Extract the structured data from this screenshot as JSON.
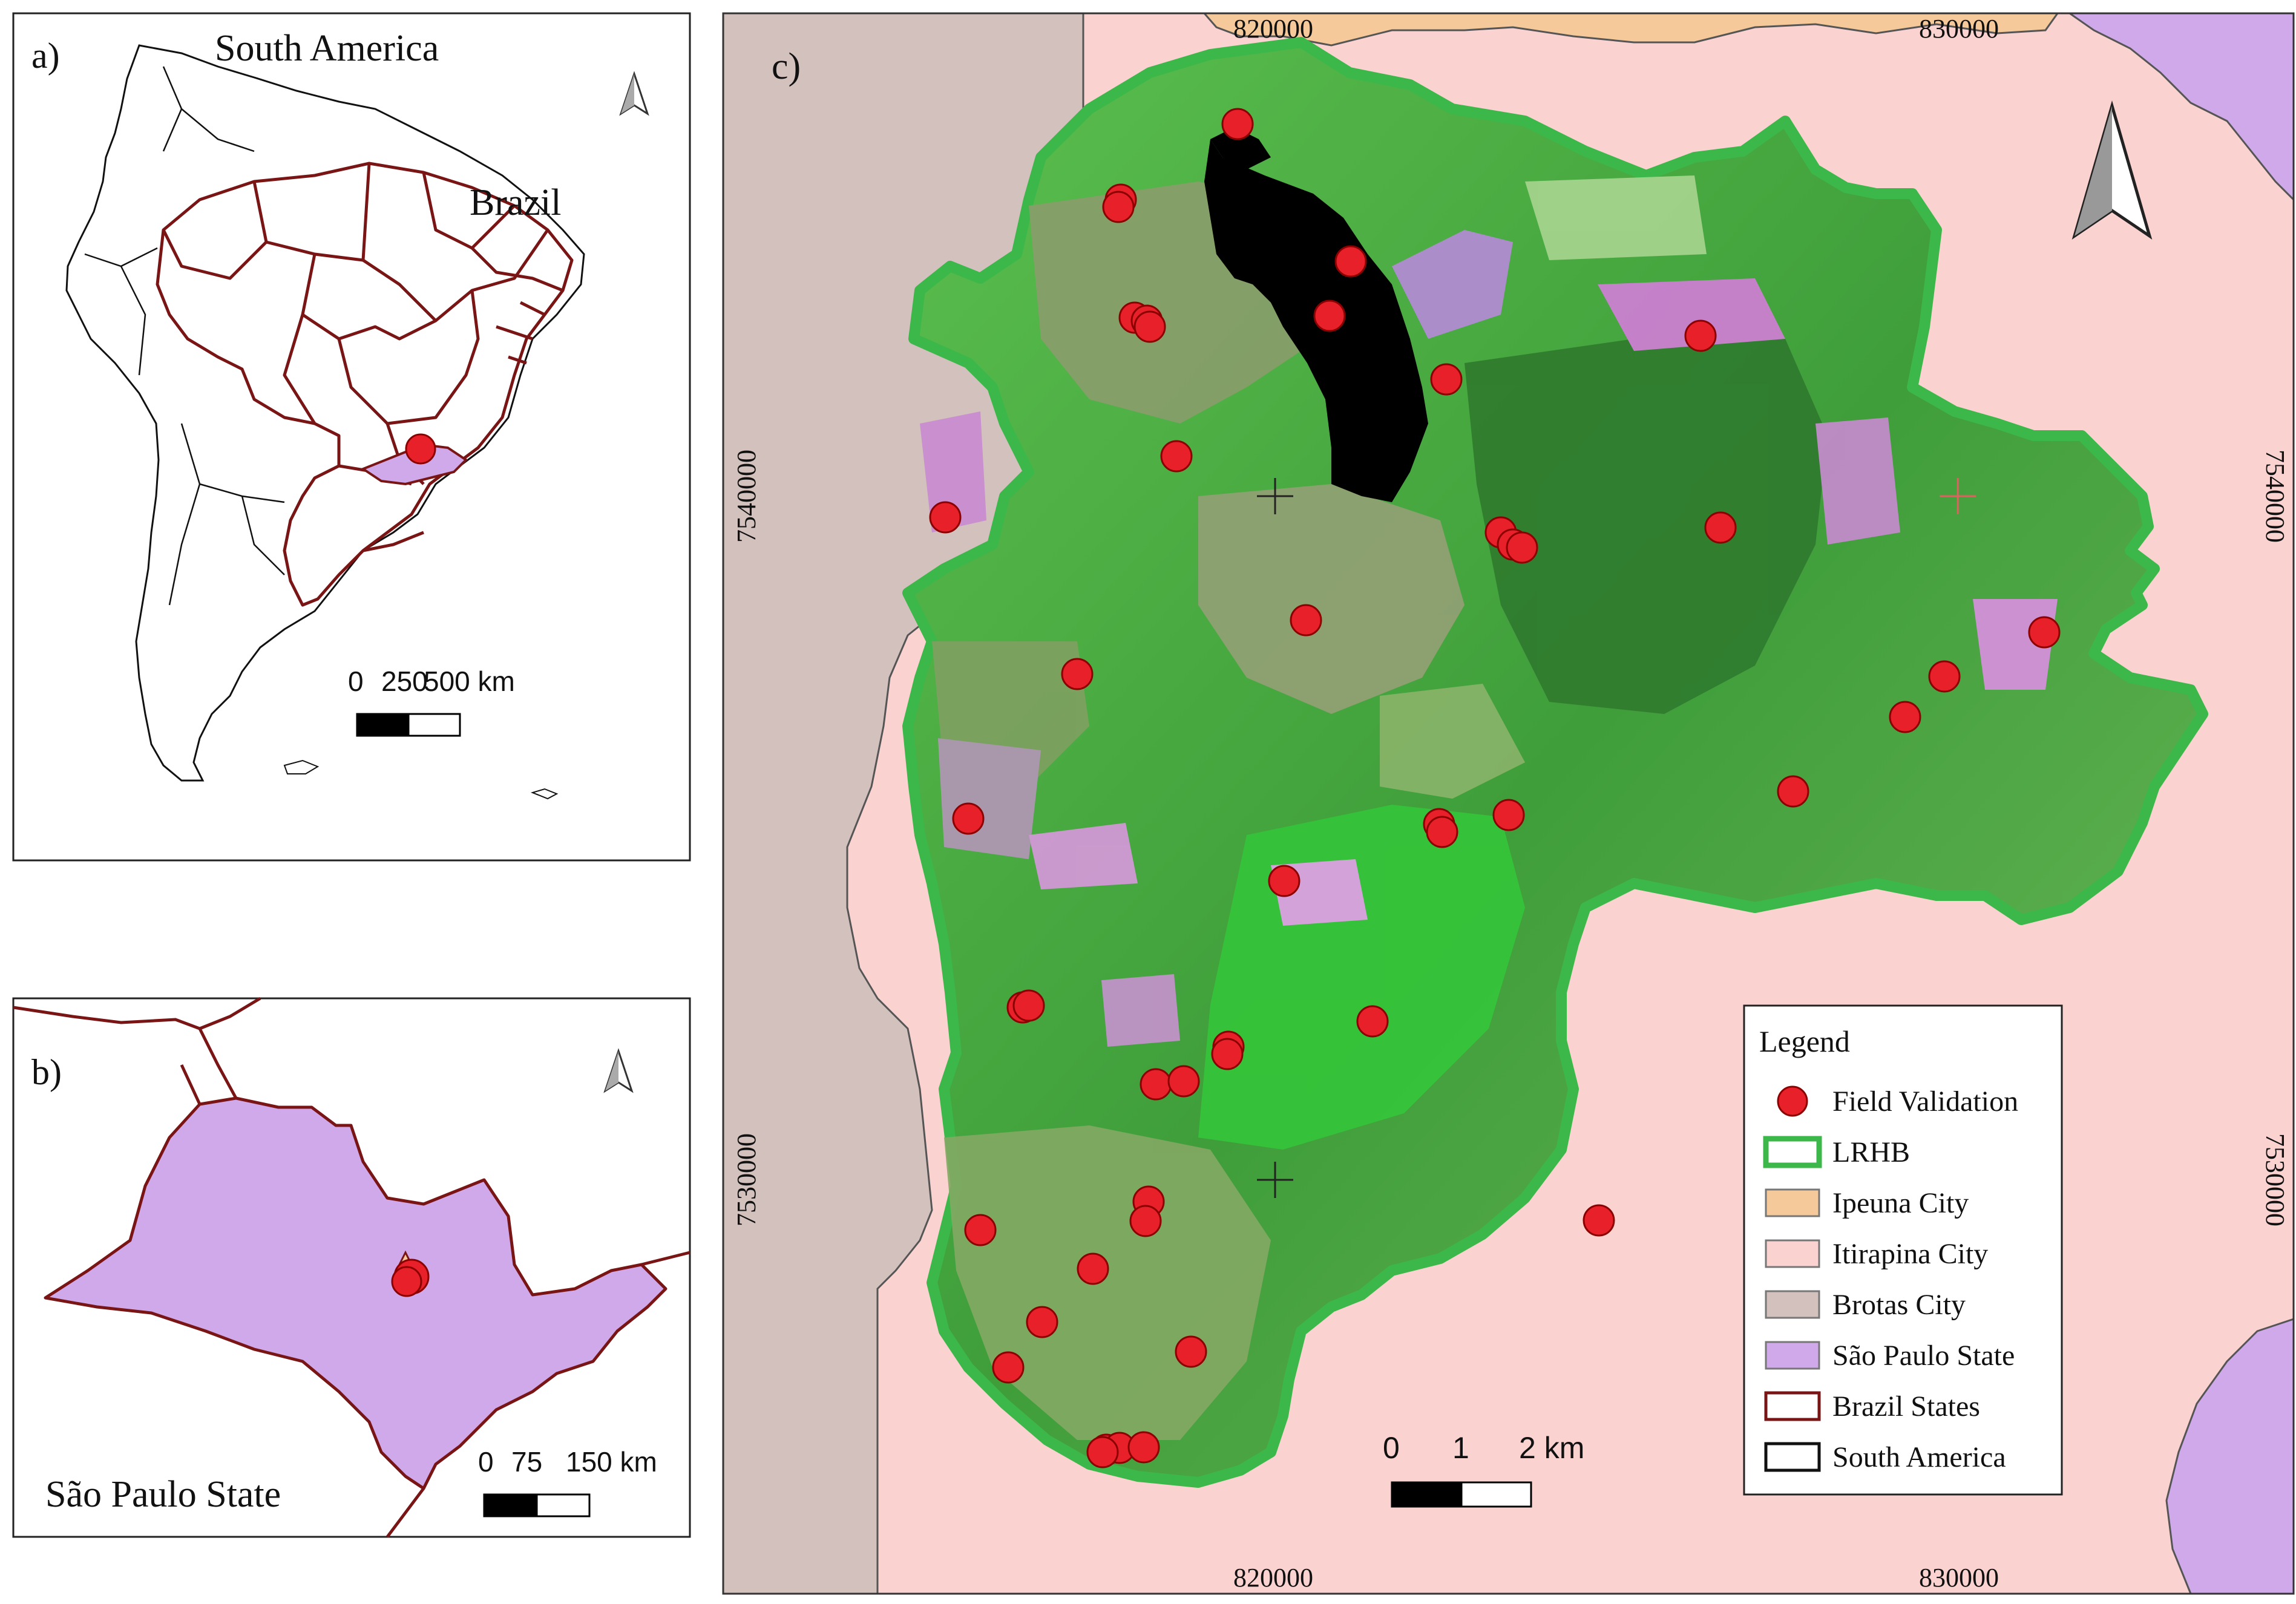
{
  "panel_a": {
    "label": "a)",
    "title": "South America",
    "country_label": "Brazil",
    "scale": {
      "ticks": [
        "0",
        "250",
        "500 km"
      ]
    }
  },
  "panel_b": {
    "label": "b)",
    "title": "São Paulo State",
    "scale": {
      "ticks": [
        "0",
        "75",
        "150 km"
      ]
    }
  },
  "panel_c": {
    "label": "c)",
    "coords": {
      "top": [
        "820000",
        "830000"
      ],
      "bottom": [
        "820000",
        "830000"
      ],
      "left": [
        "7540000",
        "7530000"
      ],
      "right": [
        "7540000",
        "7530000"
      ]
    },
    "scale": {
      "ticks": [
        "0",
        "1",
        "2 km"
      ]
    },
    "legend": {
      "title": "Legend",
      "items": [
        {
          "label": "Field Validation",
          "symbol": "point",
          "color": "#e8202a"
        },
        {
          "label": "LRHB",
          "symbol": "outline",
          "color": "#3cb84a"
        },
        {
          "label": "Ipeuna City",
          "symbol": "fill",
          "color": "#f5c99a"
        },
        {
          "label": "Itirapina City",
          "symbol": "fill",
          "color": "#fad2d0"
        },
        {
          "label": "Brotas City",
          "symbol": "fill",
          "color": "#d3c1bd"
        },
        {
          "label": "São Paulo State",
          "symbol": "fill",
          "color": "#cfa9ea"
        },
        {
          "label": "Brazil States",
          "symbol": "outline",
          "color": "#7a1515"
        },
        {
          "label": "South America",
          "symbol": "outline",
          "color": "#111111"
        }
      ]
    }
  }
}
